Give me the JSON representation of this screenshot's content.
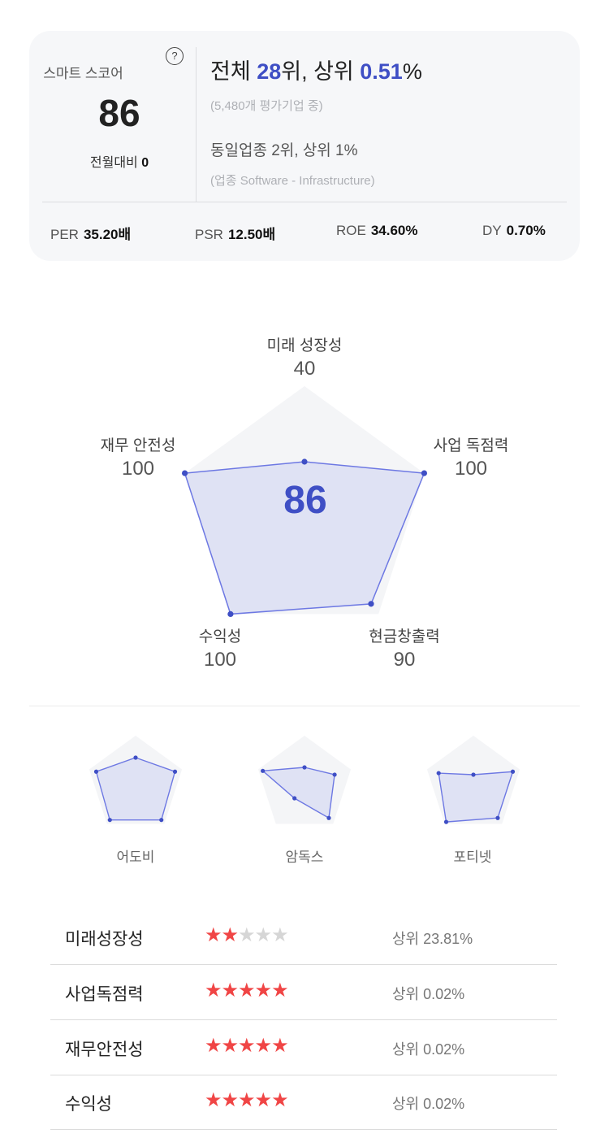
{
  "summary": {
    "score_label": "스마트 스코어",
    "help_icon_glyph": "?",
    "score": "86",
    "mom_label": "전월대비",
    "mom_value": "0",
    "rank_prefix": "전체 ",
    "rank": "28",
    "rank_mid": "위, 상위 ",
    "rank_pct": "0.51",
    "rank_suffix": "%",
    "rank_sub": "(5,480개 평가기업 중)",
    "peer_rank": "동일업종 2위, 상위 1%",
    "peer_sub": "(업종 Software - Infrastructure)"
  },
  "metrics": [
    {
      "label": "PER",
      "value": "35.20배"
    },
    {
      "label": "PSR",
      "value": "12.50배"
    },
    {
      "label": "ROE",
      "value": "34.60%"
    },
    {
      "label": "DY",
      "value": "0.70%"
    }
  ],
  "radar": {
    "center_score": "86",
    "axes": [
      {
        "label": "미래 성장성",
        "value": "40"
      },
      {
        "label": "사업 독점력",
        "value": "100"
      },
      {
        "label": "현금창출력",
        "value": "90"
      },
      {
        "label": "수익성",
        "value": "100"
      },
      {
        "label": "재무 안전성",
        "value": "100"
      }
    ],
    "accent_color": "#3f4fc5"
  },
  "comparisons": [
    {
      "name": "어도비"
    },
    {
      "name": "암독스"
    },
    {
      "name": "포티넷"
    }
  ],
  "ratings": [
    {
      "name": "미래성장성",
      "stars": 2,
      "max_stars": 5,
      "percentile": "상위 23.81%"
    },
    {
      "name": "사업독점력",
      "stars": 5,
      "max_stars": 5,
      "percentile": "상위 0.02%"
    },
    {
      "name": "재무안전성",
      "stars": 5,
      "max_stars": 5,
      "percentile": "상위 0.02%"
    },
    {
      "name": "수익성",
      "stars": 5,
      "max_stars": 5,
      "percentile": "상위 0.02%"
    }
  ]
}
